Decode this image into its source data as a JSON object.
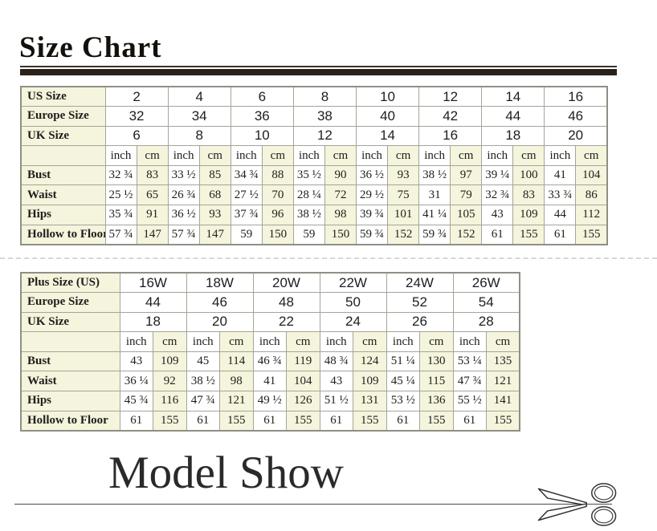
{
  "titles": {
    "size_chart": "Size Chart",
    "model_show": "Model Show"
  },
  "units": {
    "inch": "inch",
    "cm": "cm"
  },
  "colors": {
    "cell_cream": "#f5f4dc",
    "cell_white": "#ffffff",
    "table_border": "#a5a59a",
    "title_bar": "#2b211b",
    "text": "#1e1e1e"
  },
  "standard_table": {
    "size_rows": [
      {
        "label": "US Size",
        "values": [
          "2",
          "4",
          "6",
          "8",
          "10",
          "12",
          "14",
          "16"
        ]
      },
      {
        "label": "Europe Size",
        "values": [
          "32",
          "34",
          "36",
          "38",
          "40",
          "42",
          "44",
          "46"
        ]
      },
      {
        "label": "UK Size",
        "values": [
          "6",
          "8",
          "10",
          "12",
          "14",
          "16",
          "18",
          "20"
        ]
      }
    ],
    "measure_rows": [
      {
        "label": "Bust",
        "inch": [
          "32 ¾",
          "33 ½",
          "34 ¾",
          "35 ½",
          "36 ½",
          "38 ½",
          "39 ¼",
          "41"
        ],
        "cm": [
          "83",
          "85",
          "88",
          "90",
          "93",
          "97",
          "100",
          "104"
        ]
      },
      {
        "label": "Waist",
        "inch": [
          "25 ½",
          "26 ¾",
          "27 ½",
          "28 ¼",
          "29 ½",
          "31",
          "32 ¾",
          "33 ¾"
        ],
        "cm": [
          "65",
          "68",
          "70",
          "72",
          "75",
          "79",
          "83",
          "86"
        ]
      },
      {
        "label": "Hips",
        "inch": [
          "35 ¾",
          "36 ½",
          "37 ¾",
          "38 ½",
          "39 ¾",
          "41 ¼",
          "43",
          "44"
        ],
        "cm": [
          "91",
          "93",
          "96",
          "98",
          "101",
          "105",
          "109",
          "112"
        ]
      },
      {
        "label": "Hollow to Floor",
        "inch": [
          "57 ¾",
          "57 ¾",
          "59",
          "59",
          "59 ¾",
          "59 ¾",
          "61",
          "61"
        ],
        "cm": [
          "147",
          "147",
          "150",
          "150",
          "152",
          "152",
          "155",
          "155"
        ]
      }
    ]
  },
  "plus_table": {
    "size_rows": [
      {
        "label": "Plus Size (US)",
        "values": [
          "16W",
          "18W",
          "20W",
          "22W",
          "24W",
          "26W"
        ]
      },
      {
        "label": "Europe Size",
        "values": [
          "44",
          "46",
          "48",
          "50",
          "52",
          "54"
        ]
      },
      {
        "label": "UK Size",
        "values": [
          "18",
          "20",
          "22",
          "24",
          "26",
          "28"
        ]
      }
    ],
    "measure_rows": [
      {
        "label": "Bust",
        "inch": [
          "43",
          "45",
          "46 ¾",
          "48 ¾",
          "51 ¼",
          "53 ¼"
        ],
        "cm": [
          "109",
          "114",
          "119",
          "124",
          "130",
          "135"
        ]
      },
      {
        "label": "Waist",
        "inch": [
          "36 ¼",
          "38 ½",
          "41",
          "43",
          "45 ¼",
          "47 ¾"
        ],
        "cm": [
          "92",
          "98",
          "104",
          "109",
          "115",
          "121"
        ]
      },
      {
        "label": "Hips",
        "inch": [
          "45 ¾",
          "47 ¾",
          "49 ½",
          "51 ½",
          "53 ½",
          "55 ½"
        ],
        "cm": [
          "116",
          "121",
          "126",
          "131",
          "136",
          "141"
        ]
      },
      {
        "label": "Hollow to Floor",
        "inch": [
          "61",
          "61",
          "61",
          "61",
          "61",
          "61"
        ],
        "cm": [
          "155",
          "155",
          "155",
          "155",
          "155",
          "155"
        ]
      }
    ]
  }
}
